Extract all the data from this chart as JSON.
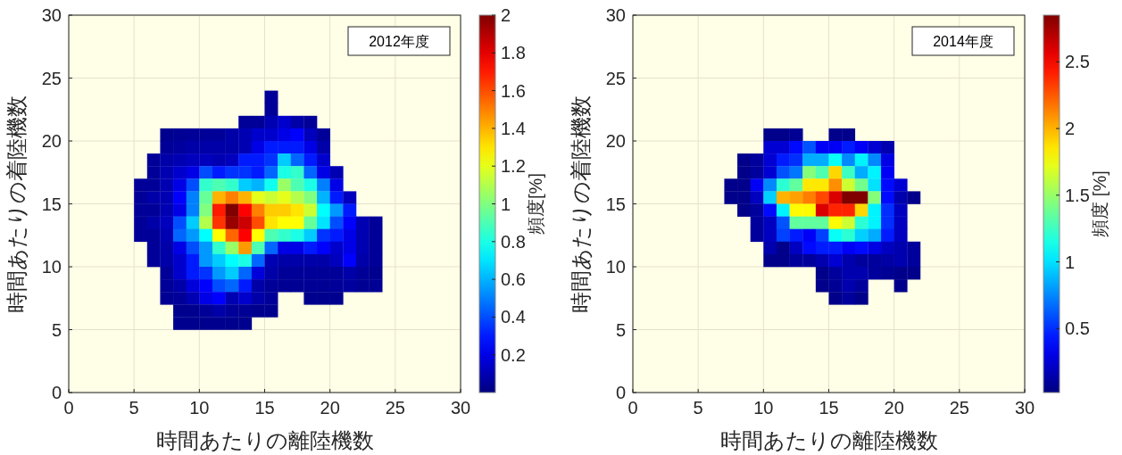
{
  "chart_data": [
    {
      "type": "heatmap",
      "xlabel": "時間あたりの離陸機数",
      "ylabel": "時間あたりの着陸機数",
      "clabel": "頻度[%]",
      "annotations": [
        "2012年度"
      ],
      "grid": true,
      "xlim": [
        0,
        30
      ],
      "ylim": [
        0,
        30
      ],
      "xticks": [
        0,
        5,
        10,
        15,
        20,
        25,
        30
      ],
      "yticks": [
        0,
        5,
        10,
        15,
        20,
        25,
        30
      ],
      "clim": [
        0,
        2
      ],
      "cticks": [
        0.2,
        0.4,
        0.6,
        0.8,
        1,
        1.2,
        1.4,
        1.6,
        1.8,
        2
      ],
      "x": [
        5.5,
        6.5,
        7.5,
        8.5,
        9.5,
        10.5,
        11.5,
        12.5,
        13.5,
        14.5,
        15.5,
        16.5,
        17.5,
        18.5,
        19.5,
        20.5,
        21.5,
        22.5,
        23.5
      ],
      "y": [
        23.5,
        22.5,
        21.5,
        20.5,
        19.5,
        18.5,
        17.5,
        16.5,
        15.5,
        14.5,
        13.5,
        12.5,
        11.5,
        10.5,
        9.5,
        8.5,
        7.5,
        6.5,
        5.5
      ],
      "cells": [
        [
          null,
          null,
          null,
          null,
          null,
          null,
          null,
          null,
          null,
          null,
          0.05,
          null,
          null,
          null,
          null,
          null,
          null,
          null,
          null
        ],
        [
          null,
          null,
          null,
          null,
          null,
          null,
          null,
          null,
          null,
          null,
          0.05,
          null,
          null,
          null,
          null,
          null,
          null,
          null,
          null
        ],
        [
          null,
          null,
          null,
          null,
          null,
          null,
          null,
          null,
          0.05,
          0.05,
          0.1,
          0.15,
          0.08,
          0.05,
          null,
          null,
          null,
          null,
          null
        ],
        [
          null,
          null,
          0.03,
          0.04,
          0.05,
          0.05,
          0.05,
          0.08,
          0.1,
          0.15,
          0.15,
          0.2,
          0.25,
          0.12,
          0.05,
          null,
          null,
          null,
          null
        ],
        [
          null,
          null,
          0.05,
          0.06,
          0.08,
          0.08,
          0.08,
          0.08,
          0.1,
          0.2,
          0.3,
          0.3,
          0.3,
          0.2,
          0.08,
          null,
          null,
          null,
          null
        ],
        [
          null,
          0.05,
          0.08,
          0.1,
          0.12,
          0.12,
          0.1,
          0.12,
          0.3,
          0.3,
          0.35,
          0.65,
          0.45,
          0.3,
          0.15,
          null,
          null,
          null,
          null
        ],
        [
          null,
          0.05,
          0.1,
          0.15,
          0.2,
          0.4,
          0.3,
          0.35,
          0.35,
          0.3,
          0.45,
          0.8,
          0.85,
          0.45,
          0.2,
          0.1,
          null,
          null,
          null
        ],
        [
          0.05,
          0.05,
          0.1,
          0.2,
          0.4,
          0.85,
          0.9,
          0.85,
          0.65,
          0.6,
          0.78,
          1.05,
          0.9,
          0.8,
          0.5,
          0.2,
          null,
          null,
          null
        ],
        [
          0.05,
          0.08,
          0.1,
          0.25,
          0.5,
          0.95,
          1.4,
          1.5,
          1.4,
          1.2,
          1.15,
          1.2,
          1.1,
          1.0,
          0.6,
          0.3,
          0.12,
          null,
          null
        ],
        [
          0.05,
          0.05,
          0.1,
          0.2,
          0.5,
          1.0,
          1.7,
          2.0,
          1.75,
          1.5,
          1.35,
          1.35,
          1.3,
          1.15,
          0.75,
          0.55,
          0.3,
          null,
          null
        ],
        [
          0.05,
          0.08,
          0.12,
          0.4,
          0.65,
          1.1,
          1.65,
          1.95,
          1.85,
          1.6,
          1.3,
          1.25,
          1.25,
          0.95,
          0.7,
          0.4,
          0.25,
          0.1,
          0.05
        ],
        [
          0.05,
          0.05,
          0.1,
          0.45,
          0.55,
          0.75,
          1.25,
          1.55,
          1.75,
          1.25,
          0.9,
          0.85,
          0.8,
          0.65,
          0.35,
          0.3,
          0.2,
          0.1,
          0.05
        ],
        [
          null,
          0.05,
          0.08,
          0.2,
          0.4,
          0.55,
          0.85,
          1.05,
          1.45,
          0.9,
          0.45,
          0.2,
          0.2,
          0.3,
          0.25,
          0.15,
          0.2,
          0.1,
          0.05
        ],
        [
          null,
          0.05,
          0.08,
          0.15,
          0.3,
          0.55,
          0.65,
          0.75,
          0.8,
          0.45,
          0.1,
          0.08,
          0.08,
          0.08,
          0.08,
          0.12,
          0.25,
          0.08,
          0.05
        ],
        [
          null,
          null,
          0.05,
          0.15,
          0.3,
          0.35,
          0.55,
          0.65,
          0.45,
          0.18,
          0.08,
          0.05,
          0.05,
          0.05,
          0.05,
          0.05,
          0.08,
          0.05,
          0.03
        ],
        [
          null,
          null,
          0.05,
          0.08,
          0.18,
          0.25,
          0.4,
          0.45,
          0.3,
          0.08,
          0.05,
          0.04,
          0.04,
          0.04,
          0.04,
          0.05,
          0.06,
          0.04,
          0.04
        ],
        [
          null,
          null,
          0.04,
          0.05,
          0.1,
          0.2,
          0.25,
          0.1,
          0.15,
          0.08,
          0.05,
          null,
          null,
          0.03,
          0.03,
          0.03,
          null,
          null,
          null
        ],
        [
          null,
          null,
          null,
          0.03,
          0.03,
          0.05,
          0.08,
          0.05,
          0.04,
          0.03,
          0.03,
          null,
          null,
          null,
          null,
          null,
          null,
          null,
          null
        ],
        [
          null,
          null,
          null,
          0.03,
          0.03,
          0.03,
          0.03,
          0.03,
          0.03,
          null,
          null,
          null,
          null,
          null,
          null,
          null,
          null,
          null,
          null
        ]
      ]
    },
    {
      "type": "heatmap",
      "xlabel": "時間あたりの離陸機数",
      "ylabel": "時間あたりの着陸機数",
      "clabel": "頻度 [%]",
      "annotations": [
        "2014年度"
      ],
      "grid": true,
      "xlim": [
        0,
        30
      ],
      "ylim": [
        0,
        30
      ],
      "xticks": [
        0,
        5,
        10,
        15,
        20,
        25,
        30
      ],
      "yticks": [
        0,
        5,
        10,
        15,
        20,
        25,
        30
      ],
      "clim": [
        0.02,
        2.85
      ],
      "cticks": [
        0.5,
        1,
        1.5,
        2,
        2.5
      ],
      "x": [
        7.5,
        8.5,
        9.5,
        10.5,
        11.5,
        12.5,
        13.5,
        14.5,
        15.5,
        16.5,
        17.5,
        18.5,
        19.5,
        20.5,
        21.5
      ],
      "y": [
        20.5,
        19.5,
        18.5,
        17.5,
        16.5,
        15.5,
        14.5,
        13.5,
        12.5,
        11.5,
        10.5,
        9.5,
        8.5,
        7.5
      ],
      "cells": [
        [
          null,
          null,
          null,
          0.05,
          0.05,
          0.08,
          null,
          null,
          0.05,
          0.05,
          null,
          null,
          null,
          null,
          null
        ],
        [
          null,
          null,
          null,
          0.25,
          0.25,
          0.4,
          0.6,
          0.35,
          0.35,
          0.45,
          0.35,
          0.25,
          0.15,
          null,
          null
        ],
        [
          null,
          0.05,
          0.1,
          0.25,
          0.45,
          0.5,
          0.85,
          0.85,
          1.1,
          0.75,
          1.05,
          0.75,
          0.3,
          null,
          null
        ],
        [
          null,
          0.05,
          0.1,
          0.25,
          0.6,
          0.7,
          1.45,
          1.3,
          1.9,
          1.25,
          0.85,
          1.05,
          0.35,
          null,
          null
        ],
        [
          0.05,
          0.05,
          0.35,
          0.75,
          1.2,
          1.35,
          1.85,
          1.85,
          2.1,
          1.65,
          1.4,
          1.0,
          0.4,
          0.25,
          null
        ],
        [
          0.05,
          0.05,
          0.2,
          0.95,
          2.0,
          2.05,
          2.15,
          2.3,
          2.6,
          2.85,
          2.85,
          1.45,
          0.4,
          0.15,
          0.05
        ],
        [
          null,
          0.05,
          0.1,
          0.4,
          1.05,
          1.8,
          1.8,
          2.6,
          2.4,
          2.4,
          1.9,
          1.05,
          0.5,
          0.2,
          null
        ],
        [
          null,
          null,
          0.1,
          0.2,
          0.6,
          1.35,
          1.35,
          1.35,
          1.8,
          1.65,
          1.2,
          1.05,
          0.5,
          0.2,
          null
        ],
        [
          null,
          null,
          0.1,
          0.2,
          0.55,
          0.45,
          0.35,
          0.55,
          1.1,
          1.2,
          0.95,
          0.85,
          0.45,
          0.2,
          null
        ],
        [
          null,
          null,
          null,
          0.15,
          0.05,
          0.2,
          0.4,
          0.45,
          0.45,
          0.35,
          0.4,
          0.3,
          0.2,
          0.15,
          0.1
        ],
        [
          null,
          null,
          null,
          0.05,
          0.05,
          0.1,
          0.1,
          0.15,
          0.25,
          0.15,
          0.1,
          0.1,
          0.12,
          0.15,
          0.1
        ],
        [
          null,
          null,
          null,
          null,
          null,
          null,
          null,
          0.05,
          0.1,
          0.15,
          0.15,
          0.1,
          0.08,
          0.05,
          0.05
        ],
        [
          null,
          null,
          null,
          null,
          null,
          null,
          null,
          0.05,
          0.08,
          0.15,
          0.1,
          null,
          null,
          0.05,
          null
        ],
        [
          null,
          null,
          null,
          null,
          null,
          null,
          null,
          null,
          0.05,
          0.1,
          0.05,
          null,
          null,
          null,
          null
        ]
      ]
    }
  ]
}
